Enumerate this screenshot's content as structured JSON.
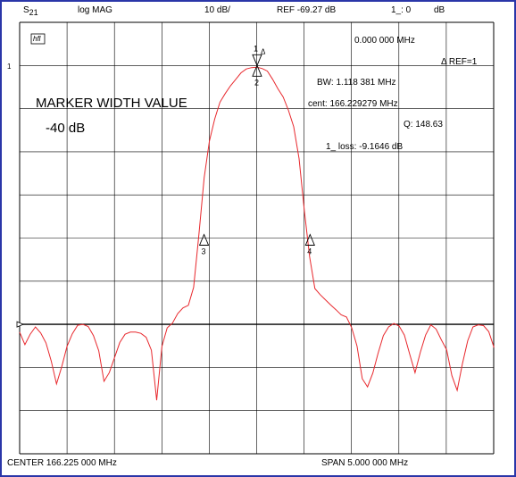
{
  "header": {
    "param": "S",
    "param_sub": "21",
    "format": "log MAG",
    "scale": "10 dB/",
    "ref": "REF -69.27 dB",
    "marker": "1_: 0",
    "marker_unit": "dB"
  },
  "box_label": "hfl",
  "side_mark": "1",
  "marker_readout": {
    "freq": "0.000 000 MHz",
    "ref": "Δ REF=1",
    "bw": "BW:   1.118 381 MHz",
    "cent": "cent:  166.229279 MHz",
    "q": "Q: 148.63",
    "loss": "1_ loss: -9.1646 dB"
  },
  "annotation": {
    "line1": "MARKER WIDTH VALUE",
    "line2": "-40 dB"
  },
  "footer": {
    "center": "CENTER  166.225 000 MHz",
    "span": "SPAN    5.000 000 MHz"
  },
  "markers": [
    {
      "label": "1",
      "delta": "Δ",
      "x_mhz": 166.2293,
      "level_db": 0
    },
    {
      "label": "2",
      "x_mhz": 166.2293,
      "level_db": 0
    },
    {
      "label": "3",
      "x_mhz": 165.67,
      "level_db": -40
    },
    {
      "label": "4",
      "x_mhz": 166.788,
      "level_db": -40
    }
  ],
  "colors": {
    "trace": "#e8282d",
    "frame": "#2a36a8",
    "grid": "#000000"
  },
  "chart_data": {
    "type": "line",
    "title": "",
    "xlabel": "",
    "ylabel": "",
    "center_mhz": 166.225,
    "span_mhz": 5.0,
    "divisions_x": 10,
    "divisions_y": 10,
    "scale_db_per_div": 10,
    "top_db": 10,
    "reference_line_db": -60,
    "grid": true,
    "series": [
      {
        "values_db": [
          -61.8,
          -64.7,
          -62.3,
          -60.6,
          -62.0,
          -64.3,
          -68.5,
          -73.8,
          -69.8,
          -65.1,
          -62.2,
          -60.2,
          -60.0,
          -60.5,
          -62.6,
          -66.1,
          -73.2,
          -71.2,
          -67.7,
          -64.2,
          -62.3,
          -61.8,
          -61.8,
          -62.1,
          -63.0,
          -66.0,
          -77.6,
          -65.1,
          -60.8,
          -59.7,
          -57.5,
          -56.2,
          -55.6,
          -51.4,
          -39.2,
          -26.0,
          -17.5,
          -12.4,
          -8.5,
          -6.5,
          -4.7,
          -3.2,
          -1.7,
          -0.8,
          -0.5,
          -0.4,
          -0.7,
          -1.3,
          -3.2,
          -5.4,
          -7.3,
          -10.4,
          -14.2,
          -21.6,
          -33.6,
          -44.3,
          -51.7,
          -53.1,
          -54.3,
          -55.5,
          -56.6,
          -57.8,
          -58.3,
          -60.8,
          -65.0,
          -72.6,
          -74.5,
          -71.3,
          -66.7,
          -62.6,
          -60.6,
          -59.8,
          -60.4,
          -62.5,
          -66.9,
          -71.2,
          -66.5,
          -62.5,
          -60.1,
          -61.1,
          -63.6,
          -65.9,
          -71.9,
          -75.3,
          -69.1,
          -63.8,
          -60.6,
          -60.1,
          -60.3,
          -61.7,
          -65.4
        ],
        "step_mhz": 0.0556,
        "start_mhz": 163.725
      }
    ]
  }
}
